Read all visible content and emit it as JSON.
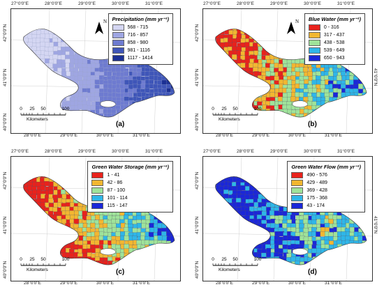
{
  "panels": [
    {
      "label": "(a)",
      "legend_title": "Precipitation (mm yr⁻¹)",
      "classes": [
        {
          "label": "568 - 715",
          "color": "#d4d6f2"
        },
        {
          "label": "716 - 857",
          "color": "#9fa6e2"
        },
        {
          "label": "858 - 980",
          "color": "#6e7bd0"
        },
        {
          "label": "981 - 1116",
          "color": "#3f56b8"
        },
        {
          "label": "1117 - 1414",
          "color": "#1c3194"
        }
      ],
      "top_ticks": [
        "27°0'0\"E",
        "28°0'0\"E",
        "29°0'0\"E",
        "30°0'0\"E",
        "31°0'0\"E"
      ],
      "bottom_ticks": [
        "28°0'0\"E",
        "29°0'0\"E",
        "30°0'0\"E",
        "31°0'0\"E"
      ],
      "left_ticks": [
        "42°0'0\"N",
        "41°0'0\"N",
        "40°0'0\"N"
      ],
      "right_ticks": []
    },
    {
      "label": "(b)",
      "legend_title": "Blue Water (mm yr⁻¹)",
      "classes": [
        {
          "label": "0 - 316",
          "color": "#e8221c"
        },
        {
          "label": "317 - 437",
          "color": "#f2b731"
        },
        {
          "label": "438 - 538",
          "color": "#9fe39a"
        },
        {
          "label": "539 - 649",
          "color": "#2fb6e8"
        },
        {
          "label": "650 - 943",
          "color": "#1b27d8"
        }
      ],
      "top_ticks": [
        "27°0'0\"E",
        "28°0'0\"E",
        "29°0'0\"E",
        "30°0'0\"E",
        "31°0'0\"E"
      ],
      "bottom_ticks": [
        "28°0'0\"E",
        "29°0'0\"E",
        "30°0'0\"E",
        "31°0'0\"E"
      ],
      "left_ticks": [
        "42°0'0\"N",
        "41°0'0\"N",
        "40°0'0\"N"
      ],
      "right_ticks": [
        "41°0'0\"N"
      ]
    },
    {
      "label": "(c)",
      "legend_title": "Green Water Storage (mm yr⁻¹)",
      "classes": [
        {
          "label": "1 - 41",
          "color": "#e8221c"
        },
        {
          "label": "42 - 86",
          "color": "#f2b731"
        },
        {
          "label": "87 - 100",
          "color": "#9fe39a"
        },
        {
          "label": "101 - 114",
          "color": "#2fb6e8"
        },
        {
          "label": "115 - 147",
          "color": "#1b27d8"
        }
      ],
      "top_ticks": [
        "27°0'0\"E",
        "28°0'0\"E",
        "29°0'0\"E",
        "30°0'0\"E",
        "31°0'0\"E"
      ],
      "bottom_ticks": [
        "28°0'0\"E",
        "29°0'0\"E",
        "30°0'0\"E",
        "31°0'0\"E"
      ],
      "left_ticks": [
        "42°0'0\"N",
        "41°0'0\"N",
        "40°0'0\"N"
      ],
      "right_ticks": []
    },
    {
      "label": "(d)",
      "legend_title": "Green Water Flow (mm yr⁻¹)",
      "classes": [
        {
          "label": "490 - 576",
          "color": "#e8221c"
        },
        {
          "label": "429 - 489",
          "color": "#f2b731"
        },
        {
          "label": "369 - 428",
          "color": "#9fe39a"
        },
        {
          "label": "175 - 368",
          "color": "#2fb6e8"
        },
        {
          "label": "43 - 174",
          "color": "#1b27d8"
        }
      ],
      "top_ticks": [
        "27°0'0\"E",
        "28°0'0\"E",
        "29°0'0\"E",
        "30°0'0\"E",
        "31°0'0\"E"
      ],
      "bottom_ticks": [
        "28°0'0\"E",
        "29°0'0\"E",
        "30°0'0\"E",
        "31°0'0\"E"
      ],
      "left_ticks": [
        "42°0'0\"N",
        "41°0'0\"N",
        "40°0'0\"N"
      ],
      "right_ticks": [
        "41°0'0\"N"
      ]
    }
  ],
  "scale": {
    "ticks": [
      "0",
      "25",
      "50",
      "100"
    ],
    "unit": "Kilometers"
  },
  "north_label": "N"
}
